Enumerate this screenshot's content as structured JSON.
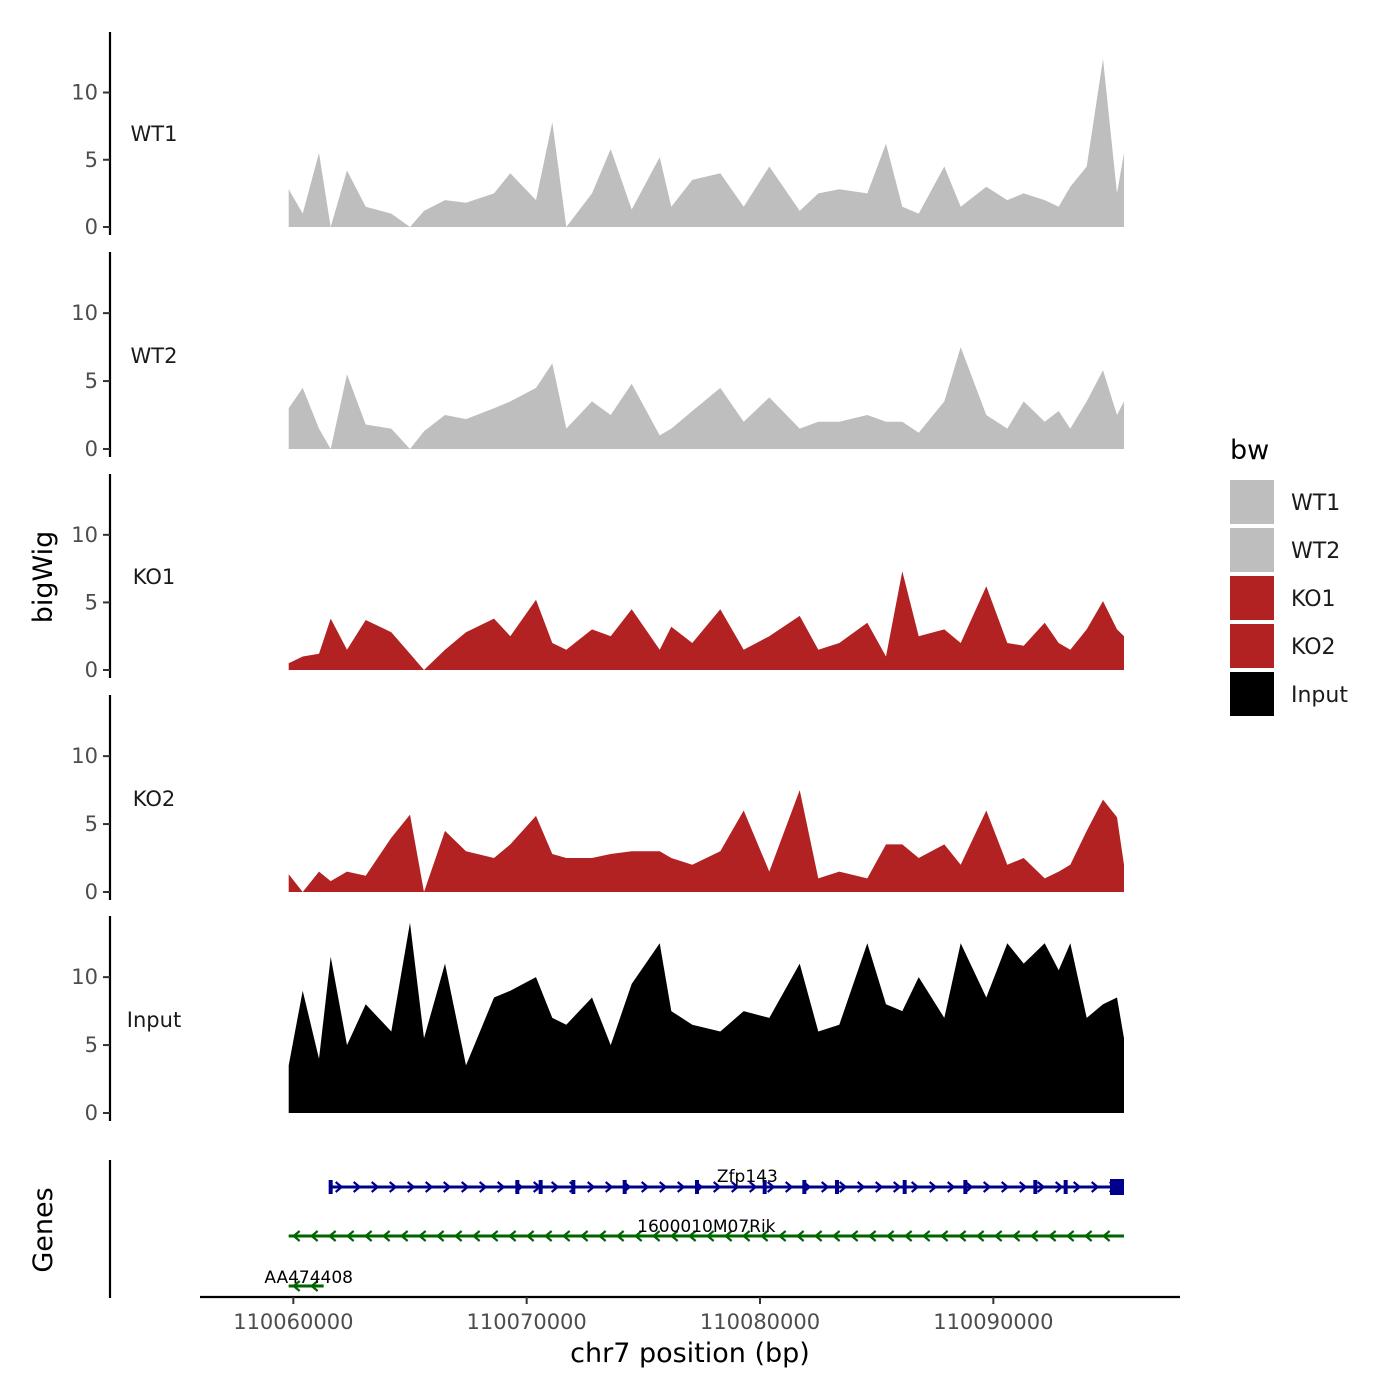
{
  "chart_data": {
    "type": "area",
    "title": "",
    "ylabel": "bigWig",
    "xlabel": "chr7 position (bp)",
    "xlim": [
      110056000,
      110098000
    ],
    "ylim": [
      0,
      14.5
    ],
    "x_ticks": [
      110060000,
      110070000,
      110080000,
      110090000
    ],
    "x_tick_labels": [
      "110060000",
      "110070000",
      "110080000",
      "110090000"
    ],
    "y_ticks": [
      0,
      5,
      10
    ],
    "y_tick_labels": [
      "0",
      "5",
      "10"
    ],
    "legend": {
      "title": "bw",
      "position": "right",
      "entries": [
        {
          "label": "WT1",
          "color": "#bebebe"
        },
        {
          "label": "WT2",
          "color": "#bebebe"
        },
        {
          "label": "KO1",
          "color": "#b22222"
        },
        {
          "label": "KO2",
          "color": "#b22222"
        },
        {
          "label": "Input",
          "color": "#000000"
        }
      ]
    },
    "tracks": [
      {
        "name": "WT1",
        "color": "#bebebe",
        "x": [
          110059800,
          110060400,
          110061100,
          110061600,
          110062300,
          110063100,
          110064200,
          110065000,
          110065600,
          110066500,
          110067400,
          110068600,
          110069300,
          110070400,
          110071100,
          110071700,
          110072800,
          110073600,
          110074500,
          110075700,
          110076200,
          110077100,
          110078300,
          110079300,
          110080400,
          110081700,
          110082500,
          110083400,
          110084600,
          110085400,
          110086100,
          110086800,
          110087900,
          110088600,
          110089700,
          110090600,
          110091300,
          110092200,
          110092800,
          110093300,
          110094000,
          110094700,
          110095300,
          110095600
        ],
        "values": [
          2.8,
          1.0,
          5.5,
          0.0,
          4.2,
          1.5,
          1.0,
          0.0,
          1.2,
          2.0,
          1.8,
          2.5,
          4.0,
          2.0,
          7.8,
          0.0,
          2.5,
          5.8,
          1.3,
          5.2,
          1.5,
          3.5,
          4.0,
          1.5,
          4.5,
          1.2,
          2.5,
          2.8,
          2.5,
          6.2,
          1.5,
          1.0,
          4.5,
          1.5,
          3.0,
          2.0,
          2.5,
          2.0,
          1.5,
          3.0,
          4.5,
          12.5,
          2.5,
          5.5
        ]
      },
      {
        "name": "WT2",
        "color": "#bebebe",
        "x": [
          110059800,
          110060400,
          110061100,
          110061600,
          110062300,
          110063100,
          110064200,
          110065000,
          110065600,
          110066500,
          110067400,
          110068600,
          110069300,
          110070400,
          110071100,
          110071700,
          110072800,
          110073600,
          110074500,
          110075700,
          110076200,
          110077100,
          110078300,
          110079300,
          110080400,
          110081700,
          110082500,
          110083400,
          110084600,
          110085400,
          110086100,
          110086800,
          110087900,
          110088600,
          110089700,
          110090600,
          110091300,
          110092200,
          110092800,
          110093300,
          110094000,
          110094700,
          110095300,
          110095600
        ],
        "values": [
          3.0,
          4.5,
          1.5,
          0.0,
          5.5,
          1.8,
          1.5,
          0.0,
          1.3,
          2.5,
          2.2,
          3.0,
          3.5,
          4.5,
          6.3,
          1.5,
          3.5,
          2.5,
          4.8,
          1.0,
          1.5,
          2.8,
          4.5,
          2.0,
          3.8,
          1.5,
          2.0,
          2.0,
          2.5,
          2.0,
          2.0,
          1.2,
          3.5,
          7.5,
          2.5,
          1.5,
          3.5,
          2.0,
          2.8,
          1.5,
          3.5,
          5.8,
          2.5,
          3.5
        ]
      },
      {
        "name": "KO1",
        "color": "#b22222",
        "x": [
          110059800,
          110060400,
          110061100,
          110061600,
          110062300,
          110063100,
          110064200,
          110065000,
          110065600,
          110066500,
          110067400,
          110068600,
          110069300,
          110070400,
          110071100,
          110071700,
          110072800,
          110073600,
          110074500,
          110075700,
          110076200,
          110077100,
          110078300,
          110079300,
          110080400,
          110081700,
          110082500,
          110083400,
          110084600,
          110085400,
          110086100,
          110086800,
          110087900,
          110088600,
          110089700,
          110090600,
          110091300,
          110092200,
          110092800,
          110093300,
          110094000,
          110094700,
          110095300,
          110095600
        ],
        "values": [
          0.5,
          1.0,
          1.2,
          3.8,
          1.5,
          3.7,
          2.8,
          1.2,
          0.0,
          1.5,
          2.8,
          3.8,
          2.5,
          5.2,
          2.0,
          1.5,
          3.0,
          2.5,
          4.5,
          1.5,
          3.2,
          2.0,
          4.5,
          1.5,
          2.5,
          4.0,
          1.5,
          2.0,
          3.5,
          1.0,
          7.3,
          2.5,
          3.0,
          2.0,
          6.2,
          2.0,
          1.8,
          3.5,
          2.0,
          1.5,
          3.0,
          5.1,
          3.0,
          2.5
        ]
      },
      {
        "name": "KO2",
        "color": "#b22222",
        "x": [
          110059800,
          110060400,
          110061100,
          110061600,
          110062300,
          110063100,
          110064200,
          110065000,
          110065600,
          110066500,
          110067400,
          110068600,
          110069300,
          110070400,
          110071100,
          110071700,
          110072800,
          110073600,
          110074500,
          110075700,
          110076200,
          110077100,
          110078300,
          110079300,
          110080400,
          110081700,
          110082500,
          110083400,
          110084600,
          110085400,
          110086100,
          110086800,
          110087900,
          110088600,
          110089700,
          110090600,
          110091300,
          110092200,
          110092800,
          110093300,
          110094000,
          110094700,
          110095300,
          110095600
        ],
        "values": [
          1.3,
          0.0,
          1.5,
          0.8,
          1.5,
          1.2,
          4.0,
          5.7,
          0.0,
          4.5,
          3.0,
          2.5,
          3.5,
          5.6,
          2.8,
          2.5,
          2.5,
          2.8,
          3.0,
          3.0,
          2.5,
          2.0,
          3.0,
          6.0,
          1.5,
          7.5,
          1.0,
          1.5,
          1.0,
          3.5,
          3.5,
          2.5,
          3.5,
          2.0,
          6.0,
          2.0,
          2.5,
          1.0,
          1.5,
          2.0,
          4.5,
          6.8,
          5.5,
          2.0
        ]
      },
      {
        "name": "Input",
        "color": "#000000",
        "x": [
          110059800,
          110060400,
          110061100,
          110061600,
          110062300,
          110063100,
          110064200,
          110065000,
          110065600,
          110066500,
          110067400,
          110068600,
          110069300,
          110070400,
          110071100,
          110071700,
          110072800,
          110073600,
          110074500,
          110075700,
          110076200,
          110077100,
          110078300,
          110079300,
          110080400,
          110081700,
          110082500,
          110083400,
          110084600,
          110085400,
          110086100,
          110086800,
          110087900,
          110088600,
          110089700,
          110090600,
          110091300,
          110092200,
          110092800,
          110093300,
          110094000,
          110094700,
          110095300,
          110095600
        ],
        "values": [
          3.5,
          9.0,
          4.0,
          11.5,
          5.0,
          8.0,
          6.0,
          14.0,
          5.5,
          11.0,
          3.5,
          8.5,
          9.0,
          10.0,
          7.0,
          6.5,
          8.5,
          5.0,
          9.5,
          12.5,
          7.5,
          6.5,
          6.0,
          7.5,
          7.0,
          11.0,
          6.0,
          6.5,
          12.5,
          8.0,
          7.5,
          10.0,
          7.0,
          12.5,
          8.5,
          12.5,
          11.0,
          12.5,
          10.5,
          12.5,
          7.0,
          8.0,
          8.5,
          5.5
        ]
      }
    ],
    "genes": [
      {
        "name": "Zfp143",
        "start": 110061600,
        "end": 110095600,
        "strand": "+",
        "color": "#00008b",
        "exons": [
          110061600,
          110069600,
          110070600,
          110072000,
          110074200,
          110077300,
          110080200,
          110081900,
          110083300,
          110086200,
          110088800,
          110091800,
          110093100,
          110095000
        ]
      },
      {
        "name": "1600010M07Rik",
        "start": 110059800,
        "end": 110095600,
        "strand": "-",
        "color": "#006400",
        "exons": []
      },
      {
        "name": "AA474408",
        "start": 110059800,
        "end": 110061300,
        "strand": "-",
        "color": "#006400",
        "exons": []
      }
    ],
    "genes_label": "Genes"
  }
}
